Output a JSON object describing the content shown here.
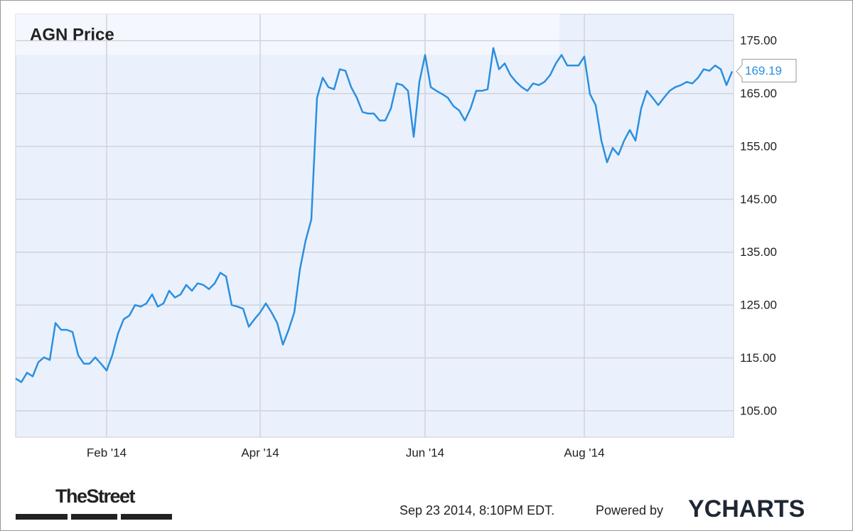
{
  "chart_data": {
    "type": "line",
    "title": "AGN Price",
    "categories": [
      null,
      null,
      null,
      null,
      null,
      null,
      null,
      null,
      null,
      null,
      null,
      null,
      null,
      null,
      null,
      null,
      "Feb '14",
      null,
      null,
      null,
      null,
      null,
      null,
      null,
      null,
      null,
      null,
      null,
      null,
      null,
      null,
      null,
      null,
      null,
      null,
      null,
      null,
      null,
      null,
      null,
      null,
      null,
      null,
      "Apr '14",
      null,
      null,
      null,
      null,
      null,
      null,
      null,
      null,
      null,
      null,
      null,
      null,
      null,
      null,
      null,
      null,
      null,
      null,
      null,
      null,
      null,
      null,
      null,
      null,
      null,
      null,
      null,
      null,
      "Jun '14",
      null,
      null,
      null,
      null,
      null,
      null,
      null,
      null,
      null,
      null,
      null,
      null,
      null,
      null,
      null,
      null,
      null,
      null,
      null,
      null,
      null,
      null,
      null,
      null,
      null,
      null,
      null,
      "Aug '14",
      null,
      null,
      null,
      null,
      null,
      null,
      null,
      null,
      null,
      null,
      null,
      null,
      null,
      null,
      null,
      null,
      null,
      null,
      null,
      null,
      null,
      null,
      null,
      null,
      null,
      null
    ],
    "series": [
      {
        "color": "#2b8fe0",
        "values": [
          111.1,
          110.4,
          112.2,
          111.5,
          114.2,
          115.1,
          114.6,
          121.6,
          120.3,
          120.3,
          119.9,
          115.5,
          113.9,
          113.9,
          115.1,
          113.9,
          112.6,
          115.5,
          119.6,
          122.3,
          123,
          125,
          124.7,
          125.3,
          127,
          124.7,
          125.3,
          127.7,
          126.4,
          127,
          128.8,
          127.7,
          129.1,
          128.8,
          128,
          129.1,
          131.1,
          130.4,
          125,
          124.7,
          124.3,
          120.9,
          122.3,
          123.6,
          125.3,
          123.6,
          121.6,
          117.5,
          120.3,
          123.6,
          131.8,
          137.2,
          141.2,
          164.2,
          168,
          166.2,
          165.8,
          169.6,
          169.3,
          166.2,
          164.2,
          161.5,
          161.2,
          161.2,
          159.9,
          159.9,
          162.2,
          166.9,
          166.6,
          165.5,
          156.8,
          167.2,
          172.3,
          166.2,
          165.5,
          164.9,
          164.2,
          162.6,
          161.8,
          159.9,
          162.2,
          165.5,
          165.5,
          165.8,
          173.6,
          169.6,
          170.7,
          168.5,
          167.2,
          166.2,
          165.5,
          166.9,
          166.6,
          167.2,
          168.5,
          170.7,
          172.3,
          170.3,
          170.3,
          170.3,
          172,
          164.9,
          162.8,
          156.1,
          152,
          154.7,
          153.4,
          156.1,
          158.1,
          156.1,
          162.2,
          165.5,
          164.2,
          162.8,
          164.2,
          165.5,
          166.2,
          166.6,
          167.2,
          166.9,
          168,
          169.6,
          169.3,
          170.3,
          169.6,
          166.6,
          169.19
        ]
      }
    ],
    "ylim": [
      100,
      180
    ],
    "yticks": [
      {
        "value": 105,
        "label": "105.00"
      },
      {
        "value": 115,
        "label": "115.00"
      },
      {
        "value": 125,
        "label": "125.00"
      },
      {
        "value": 135,
        "label": "135.00"
      },
      {
        "value": 145,
        "label": "145.00"
      },
      {
        "value": 155,
        "label": "155.00"
      },
      {
        "value": 165,
        "label": "165.00"
      },
      {
        "value": 175,
        "label": "175.00"
      }
    ],
    "grid": true,
    "source_logo": "TheStreet",
    "timestamp": "Sep 23 2014, 8:10PM EDT.",
    "credit": "Powered by",
    "brand": "YCHARTS"
  }
}
